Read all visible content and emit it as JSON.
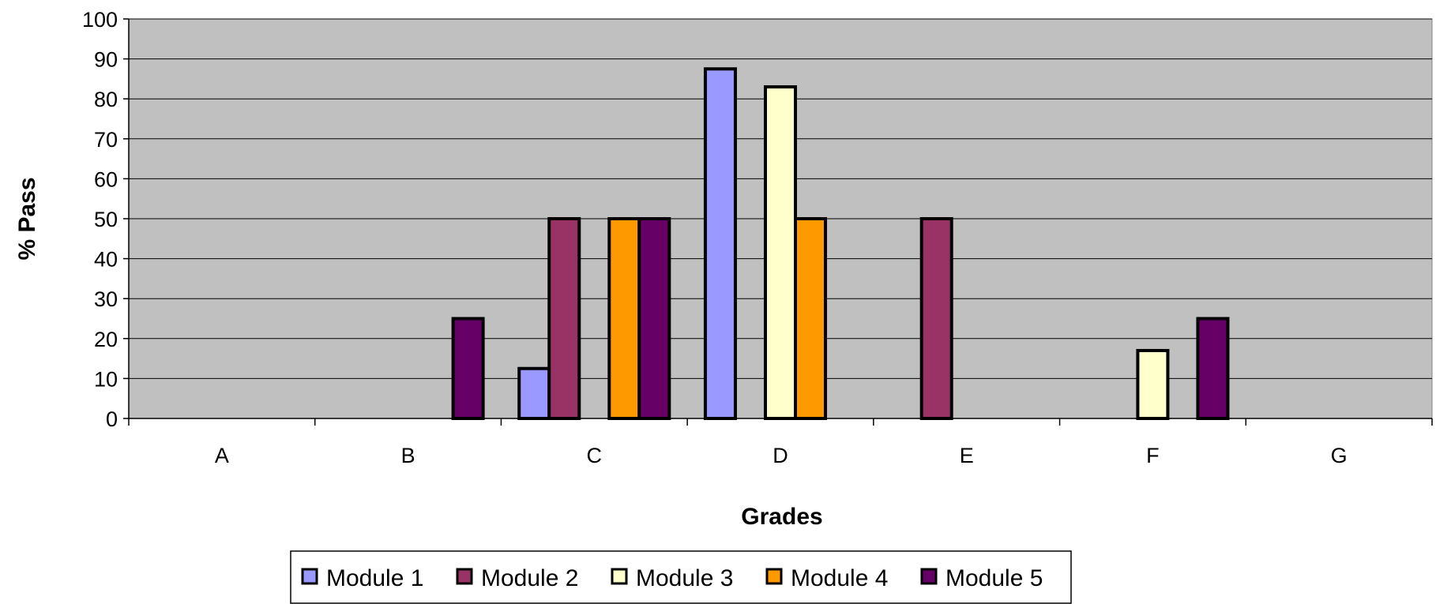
{
  "chart_data": {
    "type": "bar",
    "title": "",
    "xlabel": "Grades",
    "ylabel": "% Pass",
    "categories": [
      "A",
      "B",
      "C",
      "D",
      "E",
      "F",
      "G"
    ],
    "ylim": [
      0,
      100
    ],
    "yticks": [
      0,
      10,
      20,
      30,
      40,
      50,
      60,
      70,
      80,
      90,
      100
    ],
    "grid": true,
    "legend_position": "bottom",
    "plot_background": "#C0C0C0",
    "series": [
      {
        "name": "Module 1",
        "color": "#9999FF",
        "values": [
          0,
          0,
          12.5,
          87.5,
          0,
          0,
          0
        ]
      },
      {
        "name": "Module 2",
        "color": "#993366",
        "values": [
          0,
          0,
          50,
          0,
          50,
          0,
          0
        ]
      },
      {
        "name": "Module 3",
        "color": "#FFFFCC",
        "values": [
          0,
          0,
          0,
          83,
          0,
          17,
          0
        ]
      },
      {
        "name": "Module 4",
        "color": "#FF9900",
        "values": [
          0,
          0,
          50,
          50,
          0,
          0,
          0
        ]
      },
      {
        "name": "Module 5",
        "color": "#660066",
        "values": [
          0,
          25,
          50,
          0,
          0,
          25,
          0
        ]
      }
    ]
  }
}
